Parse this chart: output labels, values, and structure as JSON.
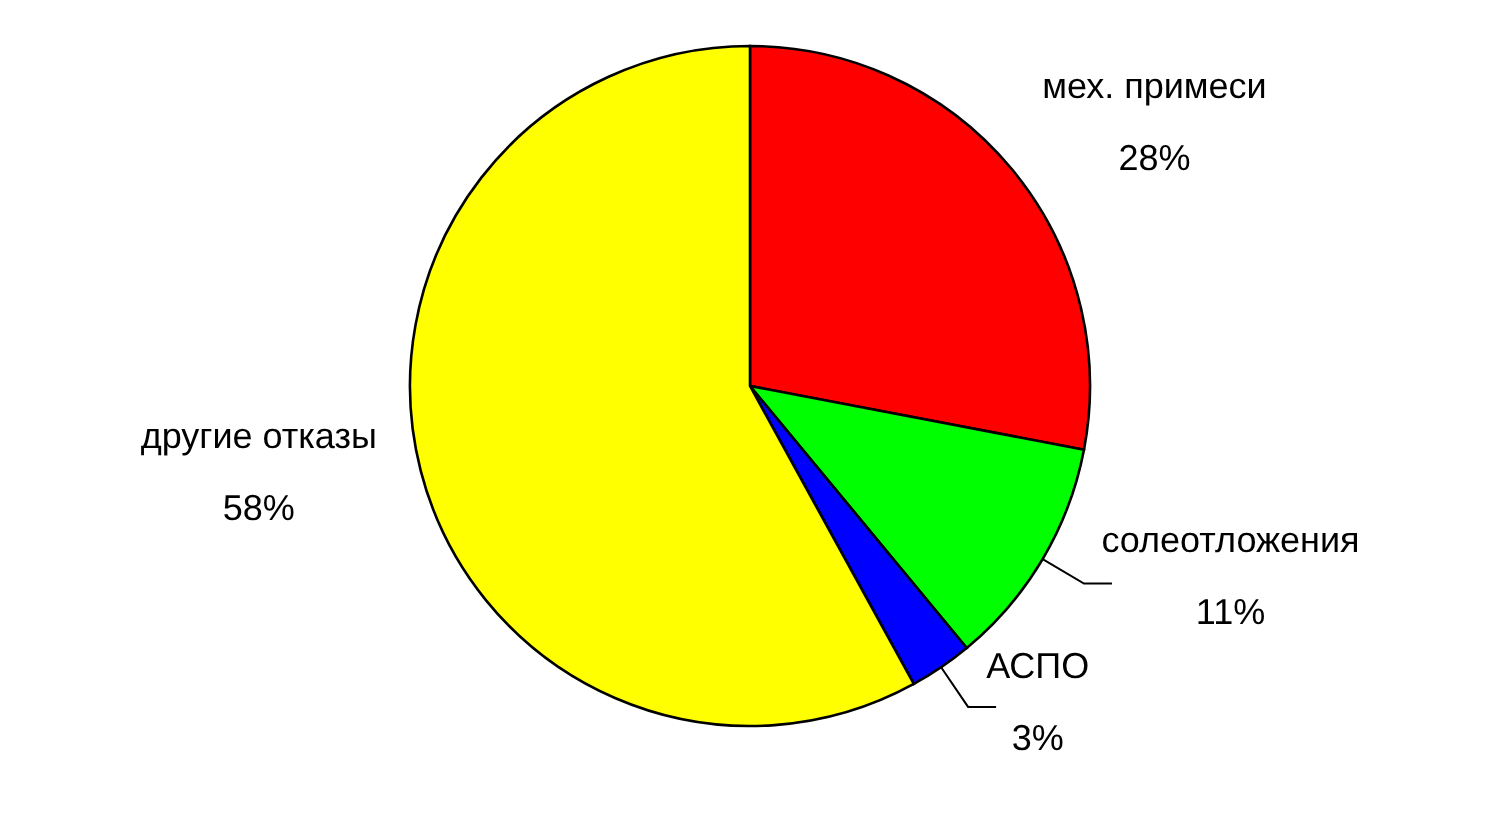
{
  "chart_data": {
    "type": "pie",
    "categories": [
      "мех. примеси",
      "солеотложения",
      "АСПО",
      "другие отказы"
    ],
    "values": [
      28,
      11,
      3,
      58
    ],
    "colors": [
      "#ff0000",
      "#00ff00",
      "#0000ff",
      "#ffff00"
    ],
    "value_labels": [
      "28%",
      "11%",
      "3%",
      "58%"
    ]
  }
}
